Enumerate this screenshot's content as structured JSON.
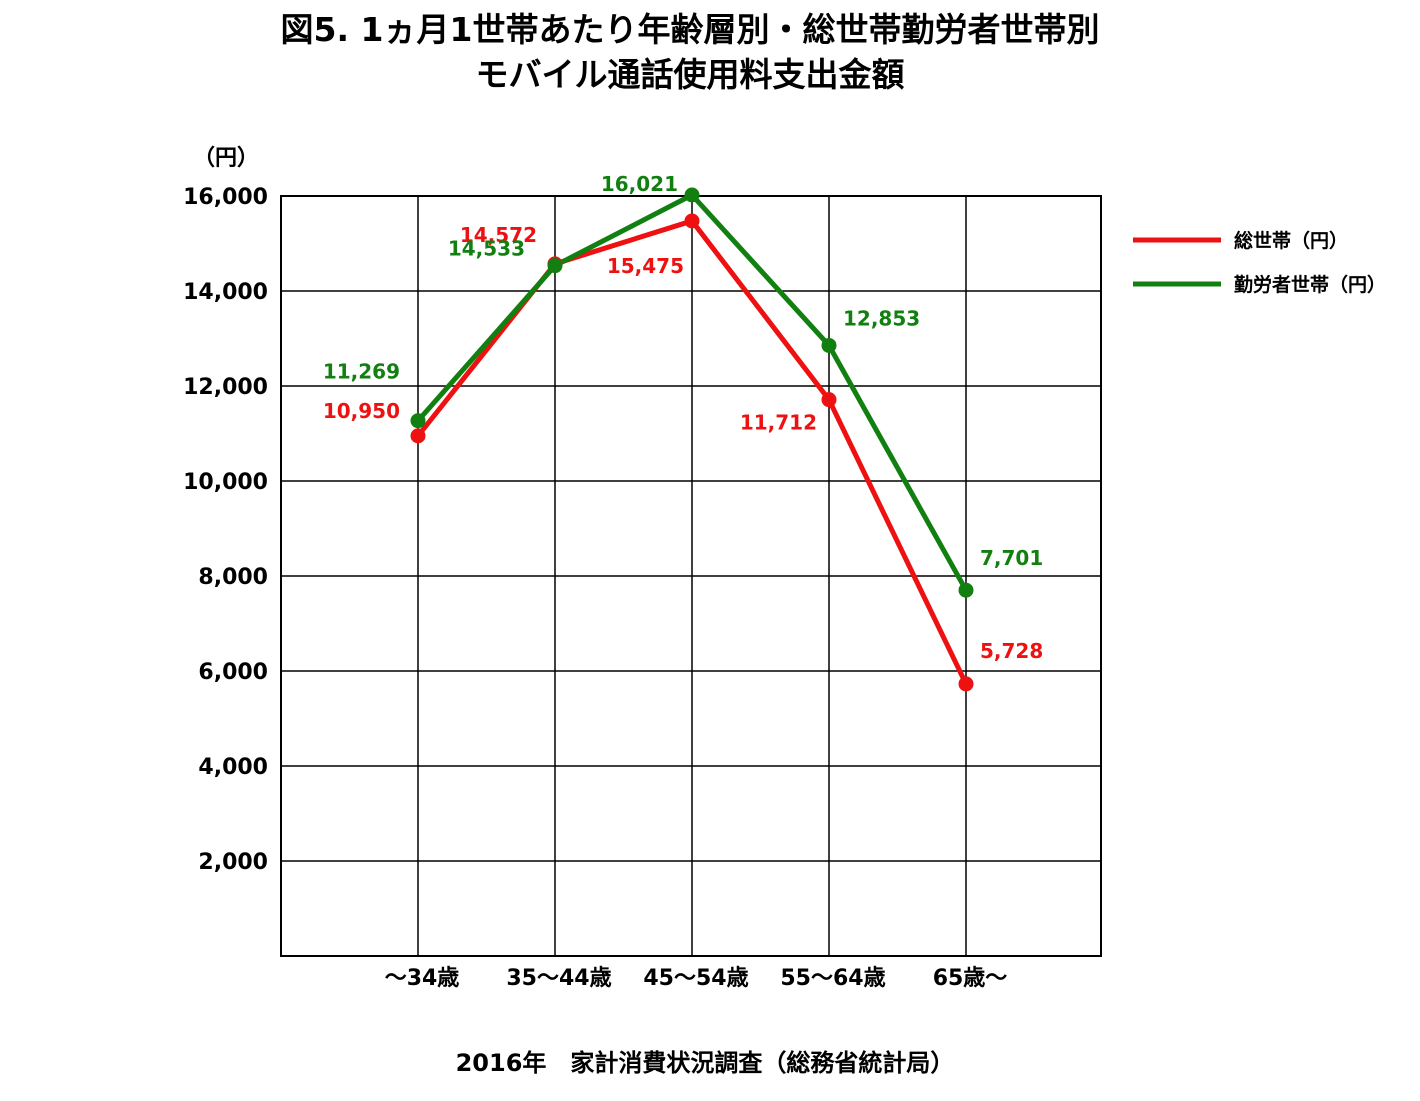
{
  "title_line1": "図5. 1ヵ月1世帯あたり年齢層別・総世帯勤労者世帯別",
  "title_line2": "モバイル通話使用料支出金額",
  "source": "2016年　家計消費状況調査（総務省統計局）",
  "chart_data": {
    "type": "line",
    "ylabel": "（円）",
    "ylim": [
      0,
      16000
    ],
    "yticks": [
      "2,000",
      "4,000",
      "6,000",
      "8,000",
      "10,000",
      "12,000",
      "14,000",
      "16,000"
    ],
    "ytick_values": [
      2000,
      4000,
      6000,
      8000,
      10000,
      12000,
      14000,
      16000
    ],
    "categories": [
      "～34歳",
      "35～44歳",
      "45～54歳",
      "55～64歳",
      "65歳～"
    ],
    "grid": true,
    "legend_position": "right",
    "series": [
      {
        "name": "総世帯（円）",
        "color": "#ee1111",
        "values": [
          10950,
          14572,
          15475,
          11712,
          5728
        ],
        "labels": [
          "10,950",
          "14,572",
          "15,475",
          "11,712",
          "5,728"
        ]
      },
      {
        "name": "勤労者世帯（円）",
        "color": "#118011",
        "values": [
          11269,
          14533,
          16021,
          12853,
          7701
        ],
        "labels": [
          "11,269",
          "14,533",
          "16,021",
          "12,853",
          "7,701"
        ]
      }
    ]
  }
}
